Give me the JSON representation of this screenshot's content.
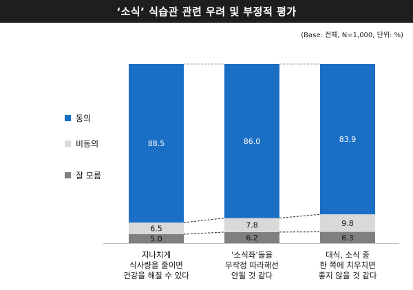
{
  "title": "‘소식’ 식습관 관련 우려 및 부정적 평가",
  "note": "(Base: 전체, N=1,000, 단위: %)",
  "colors": {
    "agree": "#1a6fc4",
    "disagree": "#d9d9d9",
    "unknown": "#7f7f7f",
    "title_bg": "#1e1e1e"
  },
  "legend": [
    {
      "label": "동의",
      "color": "#1a6fc4"
    },
    {
      "label": "비동의",
      "color": "#d9d9d9"
    },
    {
      "label": "잘 모름",
      "color": "#7f7f7f"
    }
  ],
  "chart_data": {
    "type": "bar",
    "stacked": true,
    "percent_stacked": true,
    "categories": [
      [
        "지나치게",
        "식사량을 줄이면",
        "건강을 해칠 수 있다"
      ],
      [
        "‘소식좌’들을",
        "무작정 따라해선",
        "안될 것 같다"
      ],
      [
        "대식, 소식 중",
        "한 쪽에 치우치면",
        "좋지 않을 것 같다"
      ]
    ],
    "series": [
      {
        "name": "잘 모름",
        "values": [
          5.0,
          6.2,
          6.3
        ],
        "labels": [
          "5.0",
          "6.2",
          "6.3"
        ],
        "color": "#7f7f7f"
      },
      {
        "name": "비동의",
        "values": [
          6.5,
          7.8,
          9.8
        ],
        "labels": [
          "6.5",
          "7.8",
          "9.8"
        ],
        "color": "#d9d9d9"
      },
      {
        "name": "동의",
        "values": [
          88.5,
          86.0,
          83.9
        ],
        "labels": [
          "88.5",
          "86.0",
          "83.9"
        ],
        "color": "#1a6fc4"
      }
    ],
    "ylim": [
      0,
      100
    ],
    "connector_lines": "dashed"
  }
}
